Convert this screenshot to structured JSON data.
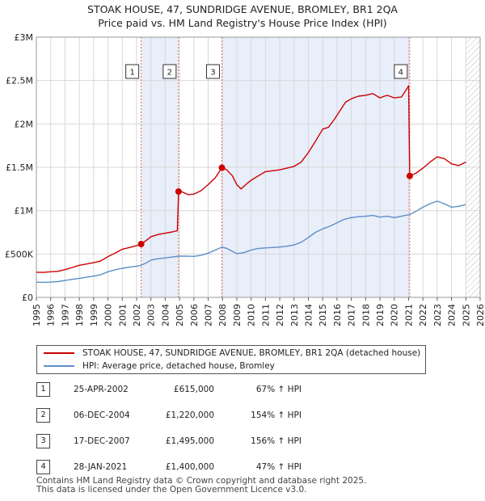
{
  "title_line1": "STOAK HOUSE, 47, SUNDRIDGE AVENUE, BROMLEY, BR1 2QA",
  "title_line2": "Price paid vs. HM Land Registry's House Price Index (HPI)",
  "colors": {
    "property": "#cc0000",
    "hpi": "#5b8fc9",
    "shade": "#e8eefa",
    "grid": "#d8d8d8",
    "marker_line": "#e06a6a"
  },
  "chart_data": {
    "type": "line",
    "xlim": [
      1995,
      2026
    ],
    "ylim": [
      0,
      3000000
    ],
    "x_ticks": [
      "1995",
      "1996",
      "1997",
      "1998",
      "1999",
      "2000",
      "2001",
      "2002",
      "2003",
      "2004",
      "2005",
      "2006",
      "2007",
      "2008",
      "2009",
      "2010",
      "2011",
      "2012",
      "2013",
      "2014",
      "2015",
      "2016",
      "2017",
      "2018",
      "2019",
      "2020",
      "2021",
      "2022",
      "2023",
      "2024",
      "2025",
      "2026"
    ],
    "y_ticks": [
      {
        "value": 0,
        "label": "£0"
      },
      {
        "value": 500000,
        "label": "£500K"
      },
      {
        "value": 1000000,
        "label": "£1M"
      },
      {
        "value": 1500000,
        "label": "£1.5M"
      },
      {
        "value": 2000000,
        "label": "£2M"
      },
      {
        "value": 2500000,
        "label": "£2.5M"
      },
      {
        "value": 3000000,
        "label": "£3M"
      }
    ],
    "shaded_spans": [
      [
        2002.32,
        2004.93
      ],
      [
        2007.96,
        2021.08
      ]
    ],
    "future_hatch_from": 2025.0,
    "series": [
      {
        "name": "STOAK HOUSE, 47, SUNDRIDGE AVENUE, BROMLEY, BR1 2QA (detached house)",
        "color": "#cc0000",
        "points": [
          [
            1995.0,
            290000
          ],
          [
            1995.5,
            288000
          ],
          [
            1996.0,
            295000
          ],
          [
            1996.5,
            300000
          ],
          [
            1997.0,
            320000
          ],
          [
            1997.5,
            345000
          ],
          [
            1998.0,
            370000
          ],
          [
            1998.5,
            385000
          ],
          [
            1999.0,
            400000
          ],
          [
            1999.5,
            420000
          ],
          [
            2000.0,
            470000
          ],
          [
            2000.5,
            510000
          ],
          [
            2001.0,
            555000
          ],
          [
            2001.5,
            575000
          ],
          [
            2002.0,
            595000
          ],
          [
            2002.32,
            615000
          ],
          [
            2002.7,
            660000
          ],
          [
            2003.0,
            700000
          ],
          [
            2003.5,
            725000
          ],
          [
            2004.0,
            740000
          ],
          [
            2004.5,
            755000
          ],
          [
            2004.85,
            770000
          ],
          [
            2004.93,
            1220000
          ],
          [
            2005.2,
            1215000
          ],
          [
            2005.6,
            1185000
          ],
          [
            2006.0,
            1190000
          ],
          [
            2006.5,
            1230000
          ],
          [
            2007.0,
            1300000
          ],
          [
            2007.5,
            1380000
          ],
          [
            2007.96,
            1495000
          ],
          [
            2008.3,
            1470000
          ],
          [
            2008.7,
            1400000
          ],
          [
            2009.0,
            1300000
          ],
          [
            2009.3,
            1250000
          ],
          [
            2009.7,
            1310000
          ],
          [
            2010.0,
            1350000
          ],
          [
            2010.5,
            1400000
          ],
          [
            2011.0,
            1450000
          ],
          [
            2011.5,
            1460000
          ],
          [
            2012.0,
            1470000
          ],
          [
            2012.5,
            1490000
          ],
          [
            2013.0,
            1510000
          ],
          [
            2013.5,
            1560000
          ],
          [
            2014.0,
            1670000
          ],
          [
            2014.5,
            1800000
          ],
          [
            2015.0,
            1940000
          ],
          [
            2015.4,
            1960000
          ],
          [
            2015.8,
            2050000
          ],
          [
            2016.2,
            2150000
          ],
          [
            2016.6,
            2250000
          ],
          [
            2017.0,
            2290000
          ],
          [
            2017.5,
            2320000
          ],
          [
            2018.0,
            2330000
          ],
          [
            2018.5,
            2350000
          ],
          [
            2019.0,
            2300000
          ],
          [
            2019.5,
            2330000
          ],
          [
            2020.0,
            2300000
          ],
          [
            2020.5,
            2310000
          ],
          [
            2020.9,
            2410000
          ],
          [
            2021.0,
            2440000
          ],
          [
            2021.08,
            1400000
          ],
          [
            2021.5,
            1430000
          ],
          [
            2022.0,
            1490000
          ],
          [
            2022.5,
            1560000
          ],
          [
            2023.0,
            1620000
          ],
          [
            2023.5,
            1600000
          ],
          [
            2024.0,
            1540000
          ],
          [
            2024.5,
            1520000
          ],
          [
            2025.0,
            1560000
          ]
        ]
      },
      {
        "name": "HPI: Average price, detached house, Bromley",
        "color": "#5b8fc9",
        "points": [
          [
            1995.0,
            175000
          ],
          [
            1995.5,
            173000
          ],
          [
            1996.0,
            176000
          ],
          [
            1996.5,
            182000
          ],
          [
            1997.0,
            195000
          ],
          [
            1997.5,
            208000
          ],
          [
            1998.0,
            220000
          ],
          [
            1998.5,
            232000
          ],
          [
            1999.0,
            245000
          ],
          [
            1999.5,
            262000
          ],
          [
            2000.0,
            295000
          ],
          [
            2000.5,
            318000
          ],
          [
            2001.0,
            335000
          ],
          [
            2001.5,
            348000
          ],
          [
            2002.0,
            360000
          ],
          [
            2002.32,
            370000
          ],
          [
            2002.7,
            400000
          ],
          [
            2003.0,
            430000
          ],
          [
            2003.5,
            445000
          ],
          [
            2004.0,
            455000
          ],
          [
            2004.5,
            465000
          ],
          [
            2004.93,
            475000
          ],
          [
            2005.5,
            476000
          ],
          [
            2006.0,
            472000
          ],
          [
            2006.5,
            485000
          ],
          [
            2007.0,
            510000
          ],
          [
            2007.5,
            545000
          ],
          [
            2007.96,
            580000
          ],
          [
            2008.3,
            565000
          ],
          [
            2008.7,
            530000
          ],
          [
            2009.0,
            505000
          ],
          [
            2009.5,
            515000
          ],
          [
            2010.0,
            545000
          ],
          [
            2010.5,
            565000
          ],
          [
            2011.0,
            570000
          ],
          [
            2011.5,
            575000
          ],
          [
            2012.0,
            580000
          ],
          [
            2012.5,
            590000
          ],
          [
            2013.0,
            605000
          ],
          [
            2013.5,
            635000
          ],
          [
            2014.0,
            690000
          ],
          [
            2014.5,
            750000
          ],
          [
            2015.0,
            790000
          ],
          [
            2015.5,
            820000
          ],
          [
            2016.0,
            860000
          ],
          [
            2016.5,
            900000
          ],
          [
            2017.0,
            920000
          ],
          [
            2017.5,
            930000
          ],
          [
            2018.0,
            935000
          ],
          [
            2018.5,
            945000
          ],
          [
            2019.0,
            925000
          ],
          [
            2019.5,
            935000
          ],
          [
            2020.0,
            920000
          ],
          [
            2020.5,
            935000
          ],
          [
            2021.08,
            955000
          ],
          [
            2021.5,
            990000
          ],
          [
            2022.0,
            1040000
          ],
          [
            2022.5,
            1080000
          ],
          [
            2023.0,
            1110000
          ],
          [
            2023.5,
            1080000
          ],
          [
            2024.0,
            1040000
          ],
          [
            2024.5,
            1050000
          ],
          [
            2025.0,
            1070000
          ]
        ]
      }
    ],
    "sales": [
      {
        "id": "1",
        "x": 2002.32,
        "y": 615000
      },
      {
        "id": "2",
        "x": 2004.93,
        "y": 1220000
      },
      {
        "id": "3",
        "x": 2007.96,
        "y": 1495000
      },
      {
        "id": "4",
        "x": 2021.08,
        "y": 1400000
      }
    ]
  },
  "legend": {
    "property_label": "STOAK HOUSE, 47, SUNDRIDGE AVENUE, BROMLEY, BR1 2QA (detached house)",
    "hpi_label": "HPI: Average price, detached house, Bromley"
  },
  "sales_table": [
    {
      "num": "1",
      "date": "25-APR-2002",
      "price": "£615,000",
      "hpi": "67% ↑ HPI"
    },
    {
      "num": "2",
      "date": "06-DEC-2004",
      "price": "£1,220,000",
      "hpi": "154% ↑ HPI"
    },
    {
      "num": "3",
      "date": "17-DEC-2007",
      "price": "£1,495,000",
      "hpi": "156% ↑ HPI"
    },
    {
      "num": "4",
      "date": "28-JAN-2021",
      "price": "£1,400,000",
      "hpi": "47% ↑ HPI"
    }
  ],
  "footer_line1": "Contains HM Land Registry data © Crown copyright and database right 2025.",
  "footer_line2": "This data is licensed under the Open Government Licence v3.0."
}
